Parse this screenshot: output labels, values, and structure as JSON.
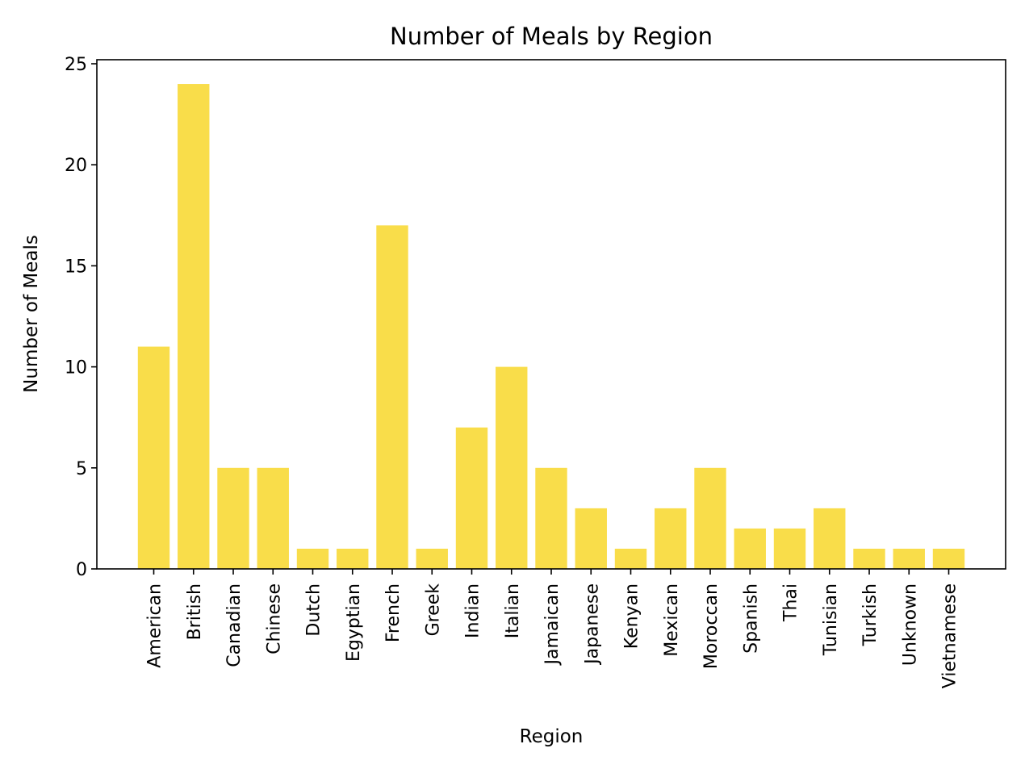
{
  "chart_data": {
    "type": "bar",
    "title": "Number of Meals by Region",
    "xlabel": "Region",
    "ylabel": "Number of Meals",
    "categories": [
      "American",
      "British",
      "Canadian",
      "Chinese",
      "Dutch",
      "Egyptian",
      "French",
      "Greek",
      "Indian",
      "Italian",
      "Jamaican",
      "Japanese",
      "Kenyan",
      "Mexican",
      "Moroccan",
      "Spanish",
      "Thai",
      "Tunisian",
      "Turkish",
      "Unknown",
      "Vietnamese"
    ],
    "values": [
      11,
      24,
      5,
      5,
      1,
      1,
      17,
      1,
      7,
      10,
      5,
      3,
      1,
      3,
      5,
      2,
      2,
      3,
      1,
      1,
      1
    ],
    "ylim": [
      0,
      25.2
    ],
    "yticks": [
      "0",
      "5",
      "10",
      "15",
      "20",
      "25"
    ],
    "bar_color": "#f9dd4a",
    "grid": false,
    "legend": "none"
  }
}
